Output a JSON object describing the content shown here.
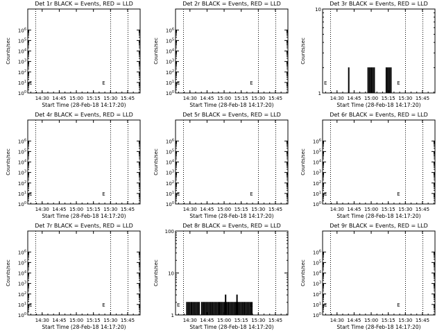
{
  "chart_data": [
    {
      "type": "line",
      "title": "Det 1r BLACK = Events, RED = LLD",
      "xlabel": "Start Time (28-Feb-18 14:17:20)",
      "ylabel": "Counts/sec",
      "yscale": "log",
      "ylim": [
        1,
        100000000
      ],
      "ytick_labels": [
        "10^0",
        "10^1",
        "10^2",
        "10^3",
        "10^4",
        "10^5",
        "10^6"
      ],
      "ytick_values": [
        1,
        10,
        100,
        1000,
        10000,
        100000,
        1000000
      ],
      "xtick_labels": [
        "14:30",
        "14:45",
        "15:00",
        "15:15",
        "15:30",
        "15:45"
      ],
      "dotted_lines_at": [
        "14:24",
        "15:30",
        "15:45"
      ],
      "series": [],
      "annotations": [
        "E"
      ]
    },
    {
      "type": "line",
      "title": "Det 2r BLACK = Events, RED = LLD",
      "xlabel": "Start Time (28-Feb-18 14:17:20)",
      "ylabel": "Counts/sec",
      "yscale": "log",
      "ylim": [
        1,
        100000000
      ],
      "ytick_labels": [
        "10^0",
        "10^1",
        "10^2",
        "10^3",
        "10^4",
        "10^5",
        "10^6"
      ],
      "ytick_values": [
        1,
        10,
        100,
        1000,
        10000,
        100000,
        1000000
      ],
      "xtick_labels": [
        "14:30",
        "14:45",
        "15:00",
        "15:15",
        "15:30",
        "15:45"
      ],
      "dotted_lines_at": [
        "14:24",
        "15:30",
        "15:45"
      ],
      "series": [],
      "annotations": [
        "E"
      ]
    },
    {
      "type": "line",
      "title": "Det 3r BLACK = Events, RED = LLD",
      "xlabel": "Start Time (28-Feb-18 14:17:20)",
      "ylabel": "Counts/sec",
      "yscale": "log",
      "ylim": [
        1,
        10
      ],
      "ytick_labels": [
        "1",
        "10"
      ],
      "ytick_values": [
        1,
        10
      ],
      "xtick_labels": [
        "14:30",
        "14:45",
        "15:00",
        "15:15",
        "15:30",
        "15:45"
      ],
      "dotted_lines_at": [
        "14:24",
        "15:30",
        "15:45"
      ],
      "series": [
        {
          "color": "#000000",
          "bursts": [
            [
              "14:40",
              "14:41",
              2
            ],
            [
              "14:57",
              "15:03",
              2
            ],
            [
              "15:13",
              "15:18",
              2
            ]
          ]
        }
      ],
      "annotations": [
        "E"
      ]
    },
    {
      "type": "line",
      "title": "Det 4r BLACK = Events, RED = LLD",
      "xlabel": "Start Time (28-Feb-18 14:17:20)",
      "ylabel": "Counts/sec",
      "yscale": "log",
      "ylim": [
        1,
        100000000
      ],
      "ytick_labels": [
        "10^0",
        "10^1",
        "10^2",
        "10^3",
        "10^4",
        "10^5",
        "10^6"
      ],
      "ytick_values": [
        1,
        10,
        100,
        1000,
        10000,
        100000,
        1000000
      ],
      "xtick_labels": [
        "14:30",
        "14:45",
        "15:00",
        "15:15",
        "15:30",
        "15:45"
      ],
      "dotted_lines_at": [
        "14:24",
        "15:30",
        "15:45"
      ],
      "series": [],
      "annotations": [
        "E"
      ]
    },
    {
      "type": "line",
      "title": "Det 5r BLACK = Events, RED = LLD",
      "xlabel": "Start Time (28-Feb-18 14:17:20)",
      "ylabel": "Counts/sec",
      "yscale": "log",
      "ylim": [
        1,
        100000000
      ],
      "ytick_labels": [
        "10^0",
        "10^1",
        "10^2",
        "10^3",
        "10^4",
        "10^5",
        "10^6"
      ],
      "ytick_values": [
        1,
        10,
        100,
        1000,
        10000,
        100000,
        1000000
      ],
      "xtick_labels": [
        "14:30",
        "14:45",
        "15:00",
        "15:15",
        "15:30",
        "15:45"
      ],
      "dotted_lines_at": [
        "14:24",
        "15:30",
        "15:45"
      ],
      "series": [],
      "annotations": [
        "E"
      ]
    },
    {
      "type": "line",
      "title": "Det 6r BLACK = Events, RED = LLD",
      "xlabel": "Start Time (28-Feb-18 14:17:20)",
      "ylabel": "Counts/sec",
      "yscale": "log",
      "ylim": [
        1,
        100000000
      ],
      "ytick_labels": [
        "10^0",
        "10^1",
        "10^2",
        "10^3",
        "10^4",
        "10^5",
        "10^6"
      ],
      "ytick_values": [
        1,
        10,
        100,
        1000,
        10000,
        100000,
        1000000
      ],
      "xtick_labels": [
        "14:30",
        "14:45",
        "15:00",
        "15:15",
        "15:30",
        "15:45"
      ],
      "dotted_lines_at": [
        "14:24",
        "15:30",
        "15:45"
      ],
      "series": [],
      "annotations": [
        "E"
      ]
    },
    {
      "type": "line",
      "title": "Det 7r BLACK = Events, RED = LLD",
      "xlabel": "Start Time (28-Feb-18 14:17:20)",
      "ylabel": "Counts/sec",
      "yscale": "log",
      "ylim": [
        1,
        100000000
      ],
      "ytick_labels": [
        "10^0",
        "10^1",
        "10^2",
        "10^3",
        "10^4",
        "10^5",
        "10^6"
      ],
      "ytick_values": [
        1,
        10,
        100,
        1000,
        10000,
        100000,
        1000000
      ],
      "xtick_labels": [
        "14:30",
        "14:45",
        "15:00",
        "15:15",
        "15:30",
        "15:45"
      ],
      "dotted_lines_at": [
        "14:24",
        "15:30",
        "15:45"
      ],
      "series": [],
      "annotations": [
        "E"
      ]
    },
    {
      "type": "line",
      "title": "Det 8r BLACK = Events, RED = LLD",
      "xlabel": "Start Time (28-Feb-18 14:17:20)",
      "ylabel": "Counts/sec",
      "yscale": "log",
      "ylim": [
        1,
        100
      ],
      "ytick_labels": [
        "1",
        "10",
        "100"
      ],
      "ytick_values": [
        1,
        10,
        100
      ],
      "xtick_labels": [
        "14:30",
        "14:45",
        "15:00",
        "15:15",
        "15:30",
        "15:45"
      ],
      "dotted_lines_at": [
        "14:24",
        "15:30",
        "15:45"
      ],
      "series": [
        {
          "color": "#000000",
          "bursts": [
            [
              "14:27",
              "14:39",
              2
            ],
            [
              "14:40",
              "14:55",
              2
            ],
            [
              "14:56",
              "15:01",
              2
            ],
            [
              "15:01",
              "15:02",
              3
            ],
            [
              "15:02",
              "15:11",
              2
            ],
            [
              "15:11",
              "15:12",
              3
            ],
            [
              "15:12",
              "15:25",
              2
            ]
          ]
        }
      ],
      "annotations": [
        "E"
      ]
    },
    {
      "type": "line",
      "title": "Det 9r BLACK = Events, RED = LLD",
      "xlabel": "Start Time (28-Feb-18 14:17:20)",
      "ylabel": "Counts/sec",
      "yscale": "log",
      "ylim": [
        1,
        100000000
      ],
      "ytick_labels": [
        "10^0",
        "10^1",
        "10^2",
        "10^3",
        "10^4",
        "10^5",
        "10^6"
      ],
      "ytick_values": [
        1,
        10,
        100,
        1000,
        10000,
        100000,
        1000000
      ],
      "xtick_labels": [
        "14:30",
        "14:45",
        "15:00",
        "15:15",
        "15:30",
        "15:45"
      ],
      "dotted_lines_at": [
        "14:24",
        "15:30",
        "15:45"
      ],
      "series": [],
      "annotations": [
        "E"
      ]
    }
  ]
}
